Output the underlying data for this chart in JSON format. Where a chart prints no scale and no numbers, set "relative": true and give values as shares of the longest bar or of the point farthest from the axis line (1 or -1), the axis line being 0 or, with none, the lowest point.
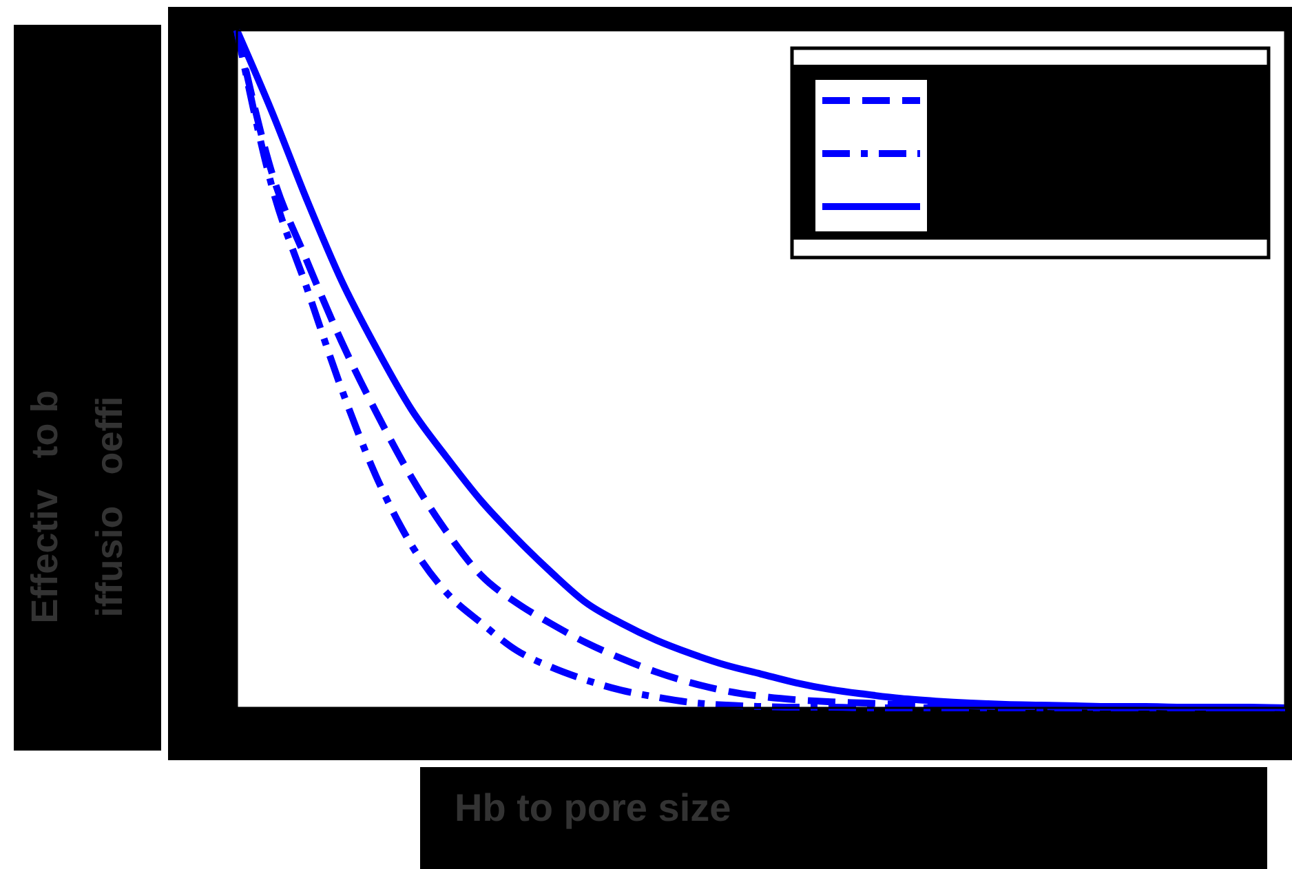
{
  "chart_data": {
    "type": "line",
    "xlabel": "Hb to pore size",
    "ylabel": "Effectiv   to b\niffusio   oeffi",
    "categories": [
      null,
      null,
      null,
      null,
      null,
      null,
      null,
      null,
      null,
      null,
      null,
      null,
      null,
      null,
      null,
      null,
      null,
      null,
      null,
      null,
      null,
      null,
      null,
      null,
      null,
      null,
      null,
      null,
      null,
      null,
      null
    ],
    "relative": true,
    "series": [
      {
        "color": "#0000ff",
        "line_style": "dashed",
        "values": [
          1,
          0.79,
          0.66,
          0.54,
          0.435,
          0.34,
          0.26,
          0.195,
          0.155,
          0.124,
          0.096,
          0.073,
          0.053,
          0.037,
          0.025,
          0.017,
          0.012,
          0.009,
          0.007,
          0.005,
          0.004,
          0.003,
          0.002,
          0.002,
          0.001,
          0.001,
          0.001,
          0,
          0,
          0,
          0
        ]
      },
      {
        "color": "#0000ff",
        "line_style": "dashdot",
        "values": [
          1,
          0.77,
          0.62,
          0.47,
          0.34,
          0.24,
          0.17,
          0.125,
          0.085,
          0.06,
          0.041,
          0.026,
          0.016,
          0.008,
          0.004,
          0.002,
          0.001,
          0.001,
          0,
          0,
          0,
          0,
          0,
          0,
          0,
          0,
          0,
          0,
          0,
          0,
          0
        ]
      },
      {
        "color": "#0000ff",
        "line_style": "solid",
        "values": [
          1,
          0.88,
          0.75,
          0.63,
          0.53,
          0.44,
          0.37,
          0.305,
          0.25,
          0.2,
          0.155,
          0.125,
          0.1,
          0.08,
          0.063,
          0.05,
          0.037,
          0.027,
          0.02,
          0.014,
          0.01,
          0.007,
          0.005,
          0.004,
          0.003,
          0.002,
          0.002,
          0.001,
          0.001,
          0.001,
          0
        ]
      }
    ]
  }
}
